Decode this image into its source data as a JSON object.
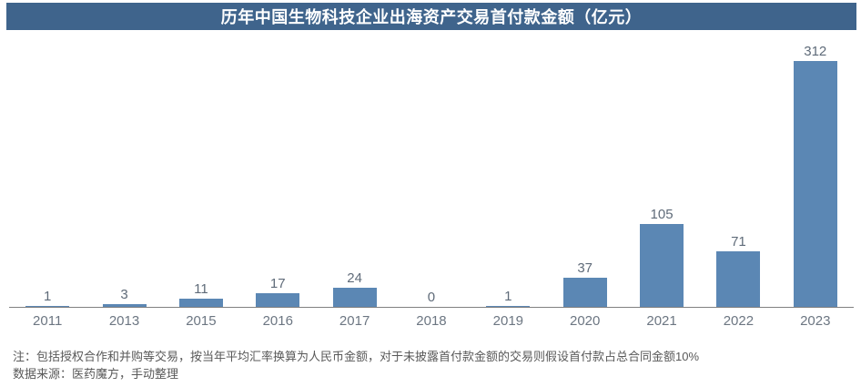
{
  "title": "历年中国生物科技企业出海资产交易首付款金额（亿元）",
  "colors": {
    "banner_background": "#3F648C",
    "banner_text": "#FFFFFF",
    "bar_fill": "#5B87B4",
    "axis_line": "#808080",
    "value_label_text": "#5F6B79",
    "year_label_text": "#6C7682",
    "note_text": "#595959",
    "page_background": "#FFFFFF"
  },
  "chart_data": {
    "type": "bar",
    "title": "历年中国生物科技企业出海资产交易首付款金额（亿元）",
    "categories": [
      "2011",
      "2013",
      "2015",
      "2016",
      "2017",
      "2018",
      "2019",
      "2020",
      "2021",
      "2022",
      "2023"
    ],
    "values": [
      1,
      3,
      11,
      17,
      24,
      0,
      1,
      37,
      105,
      71,
      312
    ],
    "xlabel": "",
    "ylabel": "",
    "ylim": [
      0,
      340
    ],
    "grid": false,
    "legend_position": "none",
    "data_labels_visible": true,
    "data_labels": [
      "1",
      "3",
      "11",
      "17",
      "24",
      "0",
      "1",
      "37",
      "105",
      "71",
      "312"
    ]
  },
  "notes": {
    "line1": "注：包括授权合作和并购等交易，按当年平均汇率换算为人民币金额，对于未披露首付款金额的交易则假设首付款占总合同金额10%",
    "line2": "数据来源：医药魔方，手动整理"
  }
}
